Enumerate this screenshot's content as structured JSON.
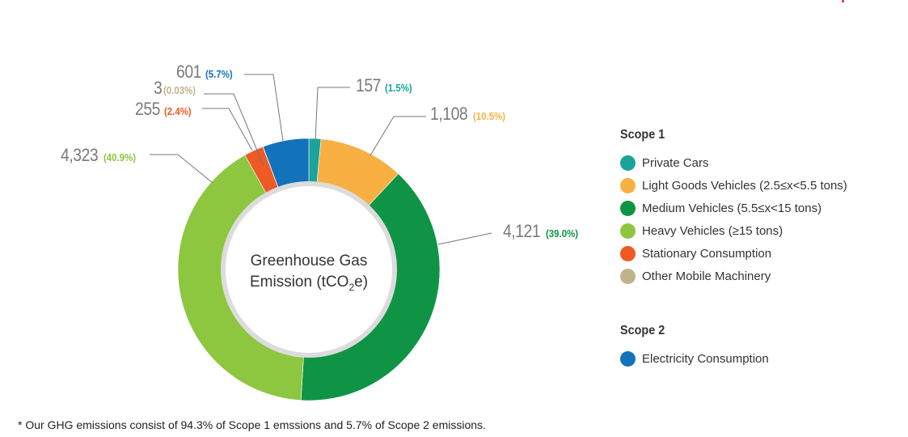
{
  "chart_data": {
    "type": "pie",
    "donut": true,
    "title": "Greenhouse Gas Emission (tCO2e)",
    "title_parts": {
      "line1": "Greenhouse Gas",
      "line2a": "Emission (tCO",
      "sub": "2",
      "line2b": "e)"
    },
    "slices": [
      {
        "label": "Private Cars",
        "value": 157,
        "value_label": "157",
        "percent_label": "(1.5%)",
        "color": "#1aa39a",
        "scope": "Scope 1"
      },
      {
        "label": "Light Goods Vehicles (2.5≤x<5.5 tons)",
        "value": 1108,
        "value_label": "1,108",
        "percent_label": "(10.5%)",
        "color": "#f9b043",
        "scope": "Scope 1"
      },
      {
        "label": "Medium Vehicles (5.5≤x<15 tons)",
        "value": 4121,
        "value_label": "4,121",
        "percent_label": "(39.0%)",
        "color": "#0f9446",
        "scope": "Scope 1"
      },
      {
        "label": "Heavy Vehicles (≥15 tons)",
        "value": 4323,
        "value_label": "4,323",
        "percent_label": "(40.9%)",
        "color": "#8dc63f",
        "scope": "Scope 1"
      },
      {
        "label": "Stationary Consumption",
        "value": 255,
        "value_label": "255",
        "percent_label": "(2.4%)",
        "color": "#ef5a24",
        "scope": "Scope 1"
      },
      {
        "label": "Other Mobile Machinery",
        "value": 3,
        "value_label": "3",
        "percent_label": "(0.03%)",
        "color": "#bfb38a",
        "scope": "Scope 1"
      },
      {
        "label": "Electricity Consumption",
        "value": 601,
        "value_label": "601",
        "percent_label": "(5.7%)",
        "color": "#1272ba",
        "scope": "Scope 2"
      }
    ],
    "legend": {
      "placement": "right",
      "groups": [
        "Scope 1",
        "Scope 2"
      ]
    },
    "footnote": "* Our GHG emissions consist of 94.3% of Scope 1 emssions and 5.7% of Scope 2 emissions."
  }
}
